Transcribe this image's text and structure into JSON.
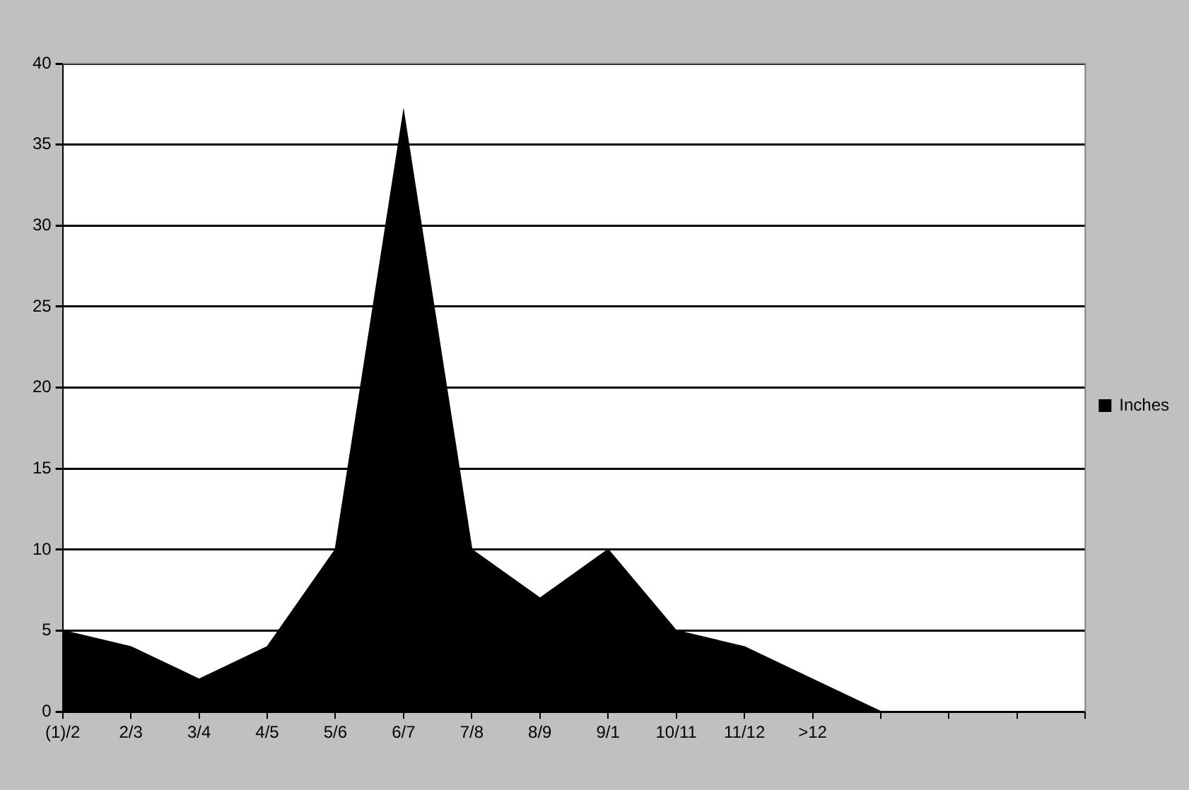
{
  "chart_data": {
    "type": "area",
    "categories": [
      "(1)/2",
      "2/3",
      "3/4",
      "4/5",
      "5/6",
      "6/7",
      "7/8",
      "8/9",
      "9/1",
      "10/11",
      "11/12",
      ">12",
      null,
      null,
      null,
      null
    ],
    "series": [
      {
        "name": "Inches",
        "color": "#000000",
        "values": [
          5,
          4,
          2,
          4,
          10,
          37,
          10,
          7,
          10,
          5,
          4,
          2,
          0,
          null,
          null,
          null
        ]
      }
    ],
    "ylim": [
      0,
      40
    ],
    "yticks": [
      0,
      5,
      10,
      15,
      20,
      25,
      30,
      35,
      40
    ],
    "grid": "y",
    "legend": "right"
  }
}
